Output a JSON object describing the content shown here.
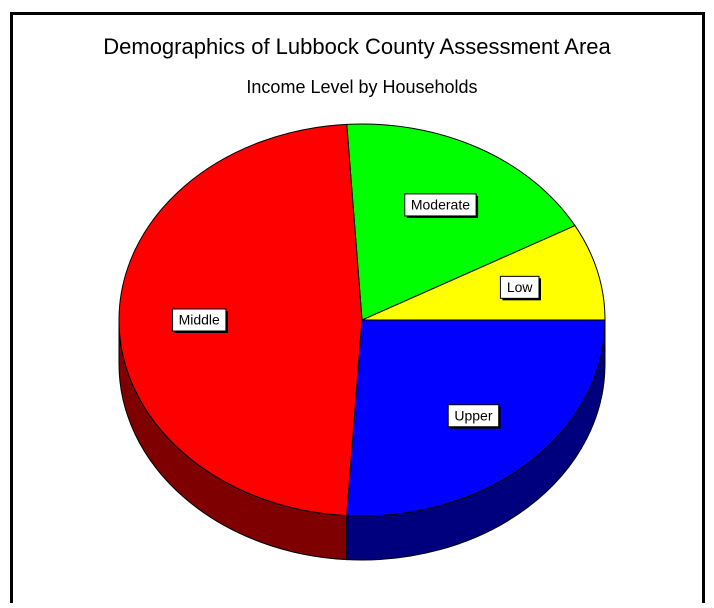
{
  "chart_data": {
    "type": "pie",
    "title": "Demographics of Lubbock County Assessment Area",
    "subtitle": "Income Level by Households",
    "categories": [
      "Low",
      "Moderate",
      "Middle",
      "Upper"
    ],
    "values": [
      8,
      18,
      48,
      26
    ],
    "colors": [
      "#ffff00",
      "#00ff00",
      "#ff0000",
      "#0000ff"
    ]
  }
}
